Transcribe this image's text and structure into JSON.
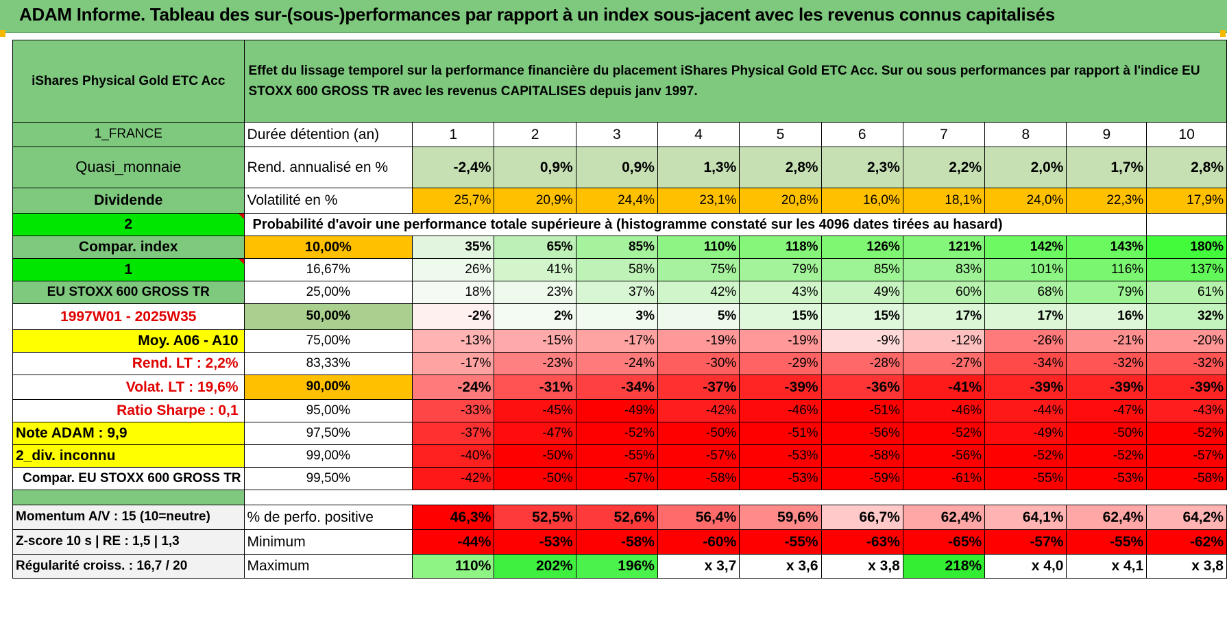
{
  "title": "ADAM Informe. Tableau des sur-(sous-)performances par rapport à un index sous-jacent avec les revenus connus capitalisés",
  "header": {
    "fund": "iShares Physical Gold ETC Acc",
    "description": "Effet du lissage temporel sur la performance financière du placement iShares Physical Gold ETC Acc. Sur ou sous performances par rapport à l'indice EU STOXX 600 GROSS TR avec les revenus CAPITALISES depuis janv 1997."
  },
  "left_labels": {
    "country": "1_FRANCE",
    "category": "Quasi_monnaie",
    "dividend": "Dividende",
    "two": "2",
    "compar_index": "Compar. index",
    "one": "1",
    "index_name": "EU STOXX 600 GROSS TR",
    "period": "1997W01 - 2025W35",
    "moy": "Moy. A06 - A10",
    "rend_lt": "Rend. LT :   2,2%",
    "volat_lt": "Volat. LT :   19,6%",
    "sharpe": "Ratio Sharpe :    0,1",
    "note": "Note ADAM : 9,9",
    "div_inconnu": "2_div. inconnu",
    "compar_full": "Compar. EU STOXX 600 GROSS TR",
    "momentum": "Momentum A/V : 15 (10=neutre)",
    "zscore": "Z-score 10 s | RE : 1,5 | 1,3",
    "regularite": "Régularité croiss. : 16,7 / 20"
  },
  "row_labels": {
    "duree": "Durée détention (an)",
    "rend": "Rend. annualisé en %",
    "vol": "Volatilité en %",
    "prob": "Probabilité d'avoir une performance totale supérieure à (histogramme constaté sur les 4096 dates tirées au hasard)",
    "pos": "% de perfo. positive",
    "min": "Minimum",
    "max": "Maximum"
  },
  "years": [
    "1",
    "2",
    "3",
    "4",
    "5",
    "6",
    "7",
    "8",
    "9",
    "10"
  ],
  "rend": [
    "-2,4%",
    "0,9%",
    "0,9%",
    "1,3%",
    "2,8%",
    "2,3%",
    "2,2%",
    "2,0%",
    "1,7%",
    "2,8%"
  ],
  "vol": [
    "25,7%",
    "20,9%",
    "24,4%",
    "23,1%",
    "20,8%",
    "16,0%",
    "18,1%",
    "24,0%",
    "22,3%",
    "17,9%"
  ],
  "percentiles": [
    {
      "p": "10,00%",
      "values": [
        "35%",
        "65%",
        "85%",
        "110%",
        "118%",
        "126%",
        "121%",
        "142%",
        "143%",
        "180%"
      ]
    },
    {
      "p": "16,67%",
      "values": [
        "26%",
        "41%",
        "58%",
        "75%",
        "79%",
        "85%",
        "83%",
        "101%",
        "116%",
        "137%"
      ]
    },
    {
      "p": "25,00%",
      "values": [
        "18%",
        "23%",
        "37%",
        "42%",
        "43%",
        "49%",
        "60%",
        "68%",
        "79%",
        "61%"
      ]
    },
    {
      "p": "50,00%",
      "values": [
        "-2%",
        "2%",
        "3%",
        "5%",
        "15%",
        "15%",
        "17%",
        "17%",
        "16%",
        "32%"
      ]
    },
    {
      "p": "75,00%",
      "values": [
        "-13%",
        "-15%",
        "-17%",
        "-19%",
        "-19%",
        "-9%",
        "-12%",
        "-26%",
        "-21%",
        "-20%"
      ]
    },
    {
      "p": "83,33%",
      "values": [
        "-17%",
        "-23%",
        "-24%",
        "-30%",
        "-29%",
        "-28%",
        "-27%",
        "-34%",
        "-32%",
        "-32%"
      ]
    },
    {
      "p": "90,00%",
      "values": [
        "-24%",
        "-31%",
        "-34%",
        "-37%",
        "-39%",
        "-36%",
        "-41%",
        "-39%",
        "-39%",
        "-39%"
      ]
    },
    {
      "p": "95,00%",
      "values": [
        "-33%",
        "-45%",
        "-49%",
        "-42%",
        "-46%",
        "-51%",
        "-46%",
        "-44%",
        "-47%",
        "-43%"
      ]
    },
    {
      "p": "97,50%",
      "values": [
        "-37%",
        "-47%",
        "-52%",
        "-50%",
        "-51%",
        "-56%",
        "-52%",
        "-49%",
        "-50%",
        "-52%"
      ]
    },
    {
      "p": "99,00%",
      "values": [
        "-40%",
        "-50%",
        "-55%",
        "-57%",
        "-53%",
        "-58%",
        "-56%",
        "-52%",
        "-52%",
        "-57%"
      ]
    },
    {
      "p": "99,50%",
      "values": [
        "-42%",
        "-50%",
        "-57%",
        "-58%",
        "-53%",
        "-59%",
        "-61%",
        "-55%",
        "-53%",
        "-58%"
      ]
    }
  ],
  "pos": [
    "46,3%",
    "52,5%",
    "52,6%",
    "56,4%",
    "59,6%",
    "66,7%",
    "62,4%",
    "64,1%",
    "62,4%",
    "64,2%"
  ],
  "min": [
    "-44%",
    "-53%",
    "-58%",
    "-60%",
    "-55%",
    "-63%",
    "-65%",
    "-57%",
    "-55%",
    "-62%"
  ],
  "max": [
    "110%",
    "202%",
    "196%",
    "x 3,7",
    "x 3,6",
    "x 3,8",
    "218%",
    "x 4,0",
    "x 4,1",
    "x 3,8"
  ],
  "colors": {
    "header_green": "#7fc97f",
    "bright_green": "#00e600",
    "yellow": "#ffff00",
    "orange": "#ffc000",
    "red": "#ff0000"
  },
  "cell_colors": {
    "rend": [
      "#c6e0b4",
      "#c6e0b4",
      "#c6e0b4",
      "#c6e0b4",
      "#c6e0b4",
      "#c6e0b4",
      "#c6e0b4",
      "#c6e0b4",
      "#c6e0b4",
      "#c6e0b4"
    ],
    "vol": [
      "#ffc000",
      "#ffc000",
      "#ffc000",
      "#ffc000",
      "#ffc000",
      "#ffc000",
      "#ffc000",
      "#ffc000",
      "#ffc000",
      "#ffc000"
    ],
    "percentiles": [
      [
        "#e2f5de",
        "#bdf0b6",
        "#a6f39d",
        "#8ef584",
        "#86f67b",
        "#7ff773",
        "#84f679",
        "#6cf961",
        "#6bf960",
        "#42fb3a"
      ],
      [
        "#eefaec",
        "#d2f5cc",
        "#bff2b7",
        "#a7f29e",
        "#a3f39a",
        "#9cf494",
        "#9ef396",
        "#8cf583",
        "#7bf671",
        "#62f859"
      ],
      [
        "#f5fbf4",
        "#eefaec",
        "#d9f6d4",
        "#d1f5cb",
        "#cff5c9",
        "#c7f4c0",
        "#b7f2ae",
        "#acf2a3",
        "#9cf494",
        "#b5f2ac"
      ],
      [
        "#fff0f0",
        "#f3fbf2",
        "#f1fbf0",
        "#eefaec",
        "#dff7db",
        "#dff7db",
        "#dbf7d6",
        "#dbf7d6",
        "#ddf7d8",
        "#c4f4bd"
      ],
      [
        "#ffb3b3",
        "#ffaaaa",
        "#ffa2a2",
        "#ff9999",
        "#ff9999",
        "#ffdada",
        "#ffc0c0",
        "#ff7a7a",
        "#ff9090",
        "#ff9595"
      ],
      [
        "#ffa2a2",
        "#ff8080",
        "#ff7b7b",
        "#ff5e5e",
        "#ff6363",
        "#ff6868",
        "#ff6c6c",
        "#ff4a4a",
        "#ff5555",
        "#ff5555"
      ],
      [
        "#ff7b7b",
        "#ff5252",
        "#ff4040",
        "#ff3030",
        "#ff2525",
        "#ff3535",
        "#ff1a1a",
        "#ff2525",
        "#ff2525",
        "#ff2525"
      ],
      [
        "#ff4646",
        "#ff1010",
        "#ff0000",
        "#ff1e1e",
        "#ff0a0a",
        "#ff0000",
        "#ff0a0a",
        "#ff1818",
        "#ff0d0d",
        "#ff1e1e"
      ],
      [
        "#ff3030",
        "#ff0d0d",
        "#ff0000",
        "#ff0000",
        "#ff0000",
        "#ff0000",
        "#ff0000",
        "#ff0d0d",
        "#ff0000",
        "#ff0000"
      ],
      [
        "#ff2020",
        "#ff0000",
        "#ff0000",
        "#ff0000",
        "#ff0000",
        "#ff0000",
        "#ff0000",
        "#ff0000",
        "#ff0000",
        "#ff0000"
      ],
      [
        "#ff1818",
        "#ff0000",
        "#ff0000",
        "#ff0000",
        "#ff0000",
        "#ff0000",
        "#ff0000",
        "#ff0000",
        "#ff0000",
        "#ff0000"
      ]
    ],
    "pos": [
      "#ff0000",
      "#ff3a3a",
      "#ff3a3a",
      "#ff6b6b",
      "#ff8a8a",
      "#ffc9c9",
      "#ffa6a6",
      "#ffb3b3",
      "#ffa6a6",
      "#ffb3b3"
    ],
    "min": [
      "#ff0000",
      "#ff0000",
      "#ff0000",
      "#ff0000",
      "#ff0000",
      "#ff0000",
      "#ff0000",
      "#ff0000",
      "#ff0000",
      "#ff0000"
    ],
    "max": [
      "#8ef584",
      "#40f040",
      "#4cf24c",
      "#ffffff",
      "#ffffff",
      "#ffffff",
      "#33ee33",
      "#ffffff",
      "#ffffff",
      "#ffffff"
    ]
  }
}
